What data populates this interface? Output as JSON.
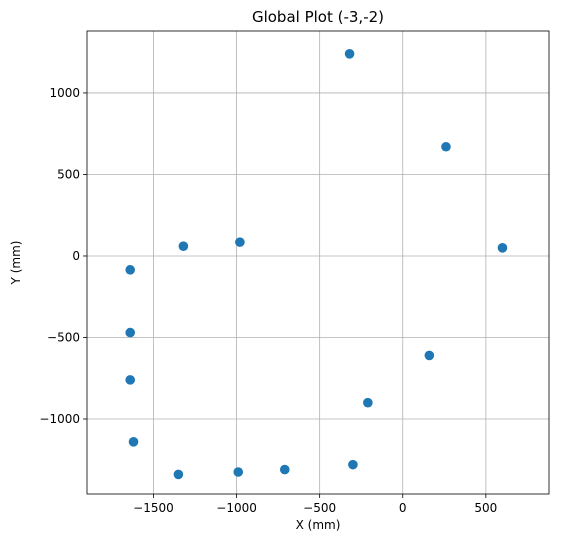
{
  "chart_data": {
    "type": "scatter",
    "title": "Global Plot (-3,-2)",
    "xlabel": "X (mm)",
    "ylabel": "Y (mm)",
    "xlim": [
      -1900,
      880
    ],
    "ylim": [
      -1460,
      1380
    ],
    "grid": true,
    "marker_color": "#1f77b4",
    "x_ticks": [
      -1500,
      -1000,
      -500,
      0,
      500
    ],
    "y_ticks": [
      -1000,
      -500,
      0,
      500,
      1000
    ],
    "x_tick_labels": [
      "−1500",
      "−1000",
      "−500",
      "0",
      "500"
    ],
    "y_tick_labels": [
      "−1000",
      "−500",
      "0",
      "500",
      "1000"
    ],
    "points": [
      {
        "x": -320,
        "y": 1240
      },
      {
        "x": 260,
        "y": 670
      },
      {
        "x": 600,
        "y": 50
      },
      {
        "x": -980,
        "y": 85
      },
      {
        "x": -1320,
        "y": 60
      },
      {
        "x": -1640,
        "y": -85
      },
      {
        "x": -1640,
        "y": -470
      },
      {
        "x": -1640,
        "y": -760
      },
      {
        "x": 160,
        "y": -610
      },
      {
        "x": -210,
        "y": -900
      },
      {
        "x": -1620,
        "y": -1140
      },
      {
        "x": -1350,
        "y": -1340
      },
      {
        "x": -990,
        "y": -1325
      },
      {
        "x": -710,
        "y": -1310
      },
      {
        "x": -300,
        "y": -1280
      }
    ]
  }
}
